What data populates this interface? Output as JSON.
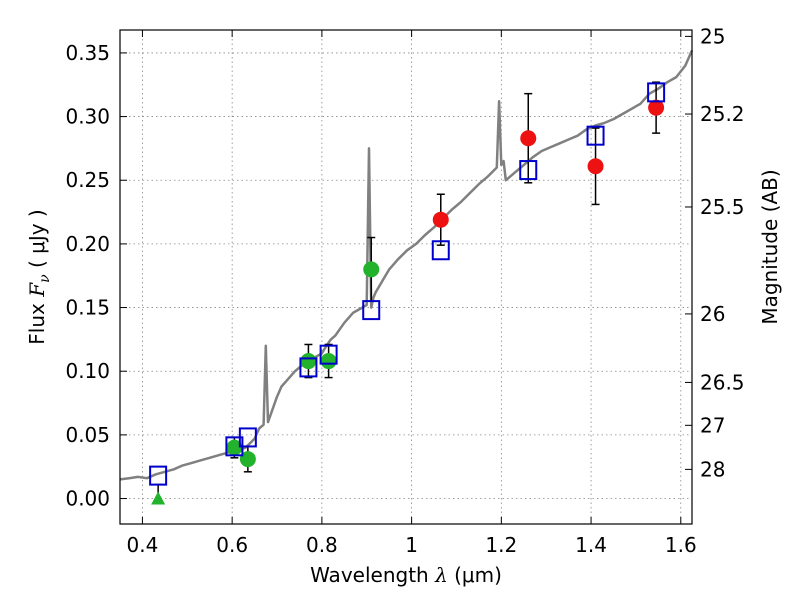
{
  "chart_data": {
    "type": "scatter",
    "xlabel": {
      "prefix": "Wavelength  ",
      "symbol": "λ",
      "unit": " (μm)"
    },
    "ylabel": {
      "prefix": "Flux  ",
      "symbol": "F",
      "sub": "ν",
      "unit": "  ( μJy )"
    },
    "y2label": "Magnitude (AB)",
    "xlim": [
      0.35,
      1.625
    ],
    "ylim": [
      -0.02,
      0.368
    ],
    "grid": true,
    "x_ticks": [
      0.4,
      0.6,
      0.8,
      1.0,
      1.2,
      1.4,
      1.6
    ],
    "x_tick_labels": [
      "0.4",
      "0.6",
      "0.8",
      "1",
      "1.2",
      "1.4",
      "1.6"
    ],
    "y_ticks": [
      0.0,
      0.05,
      0.1,
      0.15,
      0.2,
      0.25,
      0.3,
      0.35
    ],
    "y_tick_labels": [
      "0.00",
      "0.05",
      "0.10",
      "0.15",
      "0.20",
      "0.25",
      "0.30",
      "0.35"
    ],
    "y2_ticks": [
      {
        "label": "25",
        "flux": 0.363
      },
      {
        "label": "25.2",
        "flux": 0.302
      },
      {
        "label": "25.5",
        "flux": 0.229
      },
      {
        "label": "26",
        "flux": 0.145
      },
      {
        "label": "26.5",
        "flux": 0.0912
      },
      {
        "label": "27",
        "flux": 0.0575
      },
      {
        "label": "28",
        "flux": 0.0229
      }
    ],
    "colors": {
      "model": "#808080",
      "model_photometry": "#0000cc",
      "optical": "#22b22c",
      "nir": "#ee1111",
      "errorbar": "#000000",
      "grid": "#888888"
    },
    "model_spectrum": {
      "x": [
        0.35,
        0.37,
        0.39,
        0.41,
        0.43,
        0.45,
        0.47,
        0.49,
        0.51,
        0.53,
        0.55,
        0.57,
        0.59,
        0.61,
        0.63,
        0.65,
        0.66,
        0.67,
        0.675,
        0.68,
        0.69,
        0.7,
        0.71,
        0.72,
        0.73,
        0.74,
        0.75,
        0.76,
        0.77,
        0.78,
        0.79,
        0.8,
        0.81,
        0.82,
        0.83,
        0.84,
        0.85,
        0.86,
        0.87,
        0.88,
        0.89,
        0.9,
        0.905,
        0.91,
        0.915,
        0.92,
        0.93,
        0.95,
        0.97,
        0.99,
        1.01,
        1.03,
        1.05,
        1.07,
        1.09,
        1.11,
        1.13,
        1.15,
        1.17,
        1.19,
        1.195,
        1.2,
        1.205,
        1.21,
        1.23,
        1.25,
        1.27,
        1.29,
        1.31,
        1.33,
        1.35,
        1.37,
        1.39,
        1.41,
        1.43,
        1.45,
        1.47,
        1.49,
        1.51,
        1.53,
        1.55,
        1.57,
        1.59,
        1.61,
        1.625
      ],
      "y": [
        0.015,
        0.016,
        0.017,
        0.016,
        0.019,
        0.021,
        0.023,
        0.026,
        0.028,
        0.03,
        0.032,
        0.034,
        0.036,
        0.037,
        0.04,
        0.047,
        0.055,
        0.058,
        0.12,
        0.06,
        0.07,
        0.08,
        0.088,
        0.092,
        0.096,
        0.1,
        0.103,
        0.106,
        0.108,
        0.11,
        0.112,
        0.114,
        0.12,
        0.125,
        0.128,
        0.133,
        0.138,
        0.142,
        0.146,
        0.148,
        0.15,
        0.152,
        0.275,
        0.15,
        0.158,
        0.162,
        0.168,
        0.18,
        0.188,
        0.195,
        0.2,
        0.207,
        0.213,
        0.22,
        0.227,
        0.233,
        0.24,
        0.247,
        0.253,
        0.26,
        0.312,
        0.262,
        0.265,
        0.25,
        0.256,
        0.262,
        0.268,
        0.273,
        0.276,
        0.279,
        0.282,
        0.285,
        0.29,
        0.293,
        0.295,
        0.298,
        0.302,
        0.306,
        0.31,
        0.318,
        0.322,
        0.327,
        0.331,
        0.34,
        0.352
      ]
    },
    "model_photometry": {
      "x": [
        0.435,
        0.605,
        0.635,
        0.77,
        0.815,
        0.91,
        1.065,
        1.26,
        1.41,
        1.545
      ],
      "y": [
        0.018,
        0.041,
        0.048,
        0.103,
        0.113,
        0.148,
        0.195,
        0.258,
        0.285,
        0.319
      ]
    },
    "optical_points": {
      "x": [
        0.605,
        0.635,
        0.77,
        0.815,
        0.91
      ],
      "y": [
        0.04,
        0.031,
        0.108,
        0.108,
        0.18
      ],
      "err": [
        0.008,
        0.01,
        0.013,
        0.013,
        0.025
      ]
    },
    "optical_upper_limit": {
      "x": 0.435,
      "y": 0.0
    },
    "nir_points": {
      "x": [
        1.065,
        1.26,
        1.41,
        1.545
      ],
      "y": [
        0.219,
        0.283,
        0.261,
        0.307
      ],
      "err": [
        0.02,
        0.035,
        0.03,
        0.02
      ]
    }
  }
}
